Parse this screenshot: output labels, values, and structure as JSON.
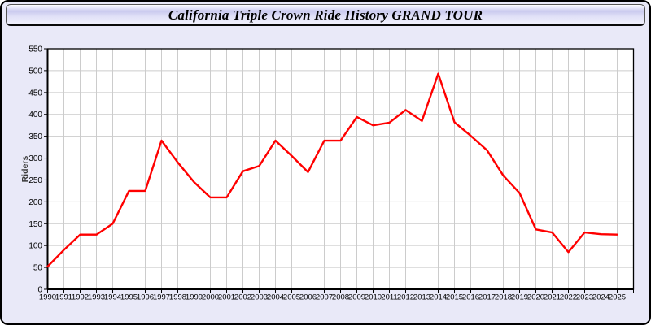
{
  "window": {
    "title": "California Triple Crown Ride History GRAND TOUR"
  },
  "chart_data": {
    "type": "line",
    "title": "California Triple Crown Ride History GRAND TOUR",
    "xlabel": "",
    "ylabel": "Riders",
    "x": [
      1990,
      1991,
      1992,
      1993,
      1994,
      1995,
      1996,
      1997,
      1998,
      1999,
      2000,
      2001,
      2002,
      2003,
      2004,
      2005,
      2006,
      2007,
      2008,
      2009,
      2010,
      2011,
      2012,
      2013,
      2014,
      2015,
      2016,
      2017,
      2018,
      2019,
      2020,
      2021,
      2022,
      2023,
      2024,
      2025
    ],
    "series": [
      {
        "name": "Riders",
        "color": "#ff0000",
        "values": [
          52,
          90,
          125,
          125,
          150,
          225,
          225,
          340,
          290,
          245,
          210,
          210,
          270,
          282,
          340,
          305,
          268,
          340,
          340,
          394,
          375,
          381,
          410,
          385,
          493,
          382,
          351,
          318,
          260,
          220,
          137,
          130,
          85,
          130,
          126,
          125
        ]
      }
    ],
    "xlim": [
      1990,
      2026
    ],
    "ylim": [
      0,
      550
    ],
    "ytick_step": 50,
    "grid": true,
    "legend_position": "none",
    "plot_bg": "#ffffff",
    "grid_color": "#cccccc",
    "axis_color": "#000000"
  },
  "colors": {
    "page_bg": "#e9e9f8",
    "frame_border": "#000000",
    "title_text": "#000000",
    "line": "#ff0000"
  }
}
